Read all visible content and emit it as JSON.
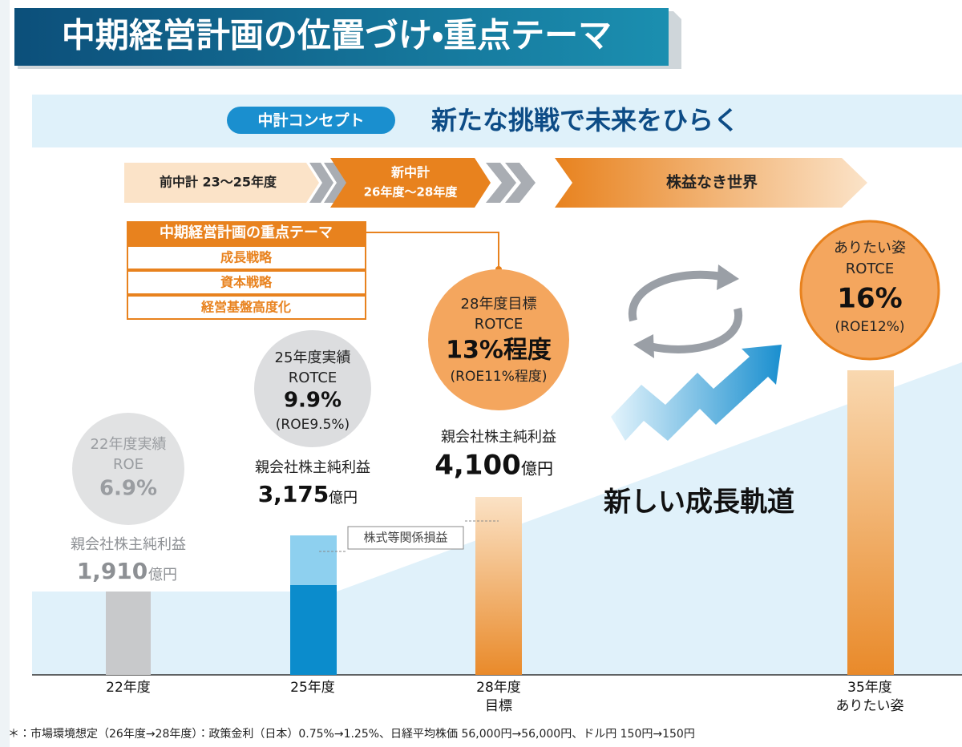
{
  "header": {
    "title": "中期経営計画の位置づけ・重点テーマ"
  },
  "concept": {
    "badge": "中計コンセプト",
    "headline": "新たな挑戦で未来をひらく"
  },
  "timeline": {
    "previous": "前中計 23〜25年度",
    "current": {
      "name": "新中計",
      "period": "26年度〜28年度"
    },
    "future": "株益なき世界"
  },
  "themes": {
    "header": "中期経営計画の重点テーマ",
    "items": [
      "成長戦略",
      "資本戦略",
      "経営基盤高度化"
    ]
  },
  "milestones": [
    {
      "circle": [
        "22年度実績",
        "ROE",
        "6.9%"
      ],
      "profit_label": "親会社株主純利益",
      "profit": "1,910",
      "unit": "億円",
      "axis": [
        "22年度"
      ]
    },
    {
      "circle": [
        "25年度実績",
        "ROTCE",
        "9.9%",
        "(ROE9.5%)"
      ],
      "profit_label": "親会社株主純利益",
      "profit": "3,175",
      "unit": "億円",
      "axis": [
        "25年度"
      ]
    },
    {
      "circle": [
        "28年度目標",
        "ROTCE",
        "13%程度",
        "(ROE11%程度)"
      ],
      "profit_label": "親会社株主純利益",
      "profit": "4,100",
      "unit": "億円",
      "axis": [
        "28年度",
        "目標"
      ]
    },
    {
      "circle": [
        "ありたい姿",
        "ROTCE",
        "16%",
        "(ROE12%)"
      ],
      "axis": [
        "35年度",
        "ありたい姿"
      ]
    }
  ],
  "annotation": "株式等関係損益",
  "trajectory": "新しい成長軌道",
  "footnote": "＊：市場環境想定（26年度→28年度）：政策金利（日本）0.75%→1.25%、日経平均株価 56,000円→56,000円、ドル円 150円→150円"
}
